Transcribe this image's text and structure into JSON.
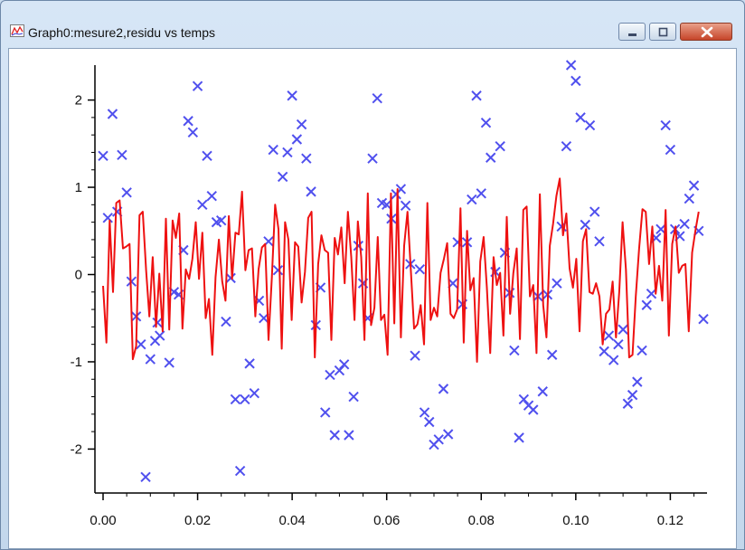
{
  "window": {
    "title": "Graph0:mesure2,residu vs temps",
    "icon": "graph-icon",
    "controls": [
      "minimize-icon",
      "maximize-icon",
      "close-icon"
    ]
  },
  "colors": {
    "marker": "#5050ee",
    "line": "#ee1111",
    "axis": "#000000"
  },
  "chart_data": {
    "type": "scatter",
    "title": "",
    "xlabel": "",
    "ylabel": "",
    "xlim": [
      0.0,
      0.127
    ],
    "ylim": [
      -2.4,
      2.4
    ],
    "xticks": [
      "0.00",
      "0.02",
      "0.04",
      "0.06",
      "0.08",
      "0.10",
      "0.12"
    ],
    "xtick_values": [
      0.0,
      0.02,
      0.04,
      0.06,
      0.08,
      0.1,
      0.12
    ],
    "yticks": [
      "2",
      "1",
      "0",
      "-1",
      "-2"
    ],
    "ytick_values": [
      2,
      1,
      0,
      -1,
      -2
    ],
    "grid": false,
    "legend": "none",
    "series": [
      {
        "role": "scatter",
        "marker": "x",
        "points": [
          [
            0.0,
            1.36
          ],
          [
            0.001,
            0.65
          ],
          [
            0.002,
            1.84
          ],
          [
            0.003,
            0.72
          ],
          [
            0.004,
            1.37
          ],
          [
            0.005,
            0.94
          ],
          [
            0.006,
            -0.08
          ],
          [
            0.007,
            -0.48
          ],
          [
            0.008,
            -0.8
          ],
          [
            0.009,
            -2.32
          ],
          [
            0.01,
            -0.97
          ],
          [
            0.011,
            -0.76
          ],
          [
            0.0115,
            -0.55
          ],
          [
            0.012,
            -0.7
          ],
          [
            0.014,
            -1.01
          ],
          [
            0.015,
            -0.2
          ],
          [
            0.016,
            -0.23
          ],
          [
            0.017,
            0.28
          ],
          [
            0.018,
            1.76
          ],
          [
            0.019,
            1.63
          ],
          [
            0.02,
            2.16
          ],
          [
            0.021,
            0.8
          ],
          [
            0.022,
            1.36
          ],
          [
            0.023,
            0.9
          ],
          [
            0.024,
            0.6
          ],
          [
            0.025,
            0.62
          ],
          [
            0.026,
            -0.54
          ],
          [
            0.027,
            -0.04
          ],
          [
            0.028,
            -1.43
          ],
          [
            0.029,
            -2.25
          ],
          [
            0.03,
            -1.43
          ],
          [
            0.031,
            -1.02
          ],
          [
            0.032,
            -1.36
          ],
          [
            0.033,
            -0.3
          ],
          [
            0.034,
            -0.5
          ],
          [
            0.035,
            0.38
          ],
          [
            0.036,
            1.43
          ],
          [
            0.037,
            0.05
          ],
          [
            0.038,
            1.12
          ],
          [
            0.039,
            1.4
          ],
          [
            0.04,
            2.05
          ],
          [
            0.041,
            1.55
          ],
          [
            0.042,
            1.72
          ],
          [
            0.043,
            1.33
          ],
          [
            0.044,
            0.95
          ],
          [
            0.045,
            -0.58
          ],
          [
            0.046,
            -0.15
          ],
          [
            0.047,
            -1.58
          ],
          [
            0.048,
            -1.15
          ],
          [
            0.049,
            -1.84
          ],
          [
            0.05,
            -1.1
          ],
          [
            0.051,
            -1.03
          ],
          [
            0.052,
            -1.84
          ],
          [
            0.053,
            -1.4
          ],
          [
            0.054,
            0.33
          ],
          [
            0.055,
            -0.1
          ],
          [
            0.056,
            -0.5
          ],
          [
            0.057,
            1.33
          ],
          [
            0.058,
            2.02
          ],
          [
            0.059,
            0.82
          ],
          [
            0.06,
            0.8
          ],
          [
            0.061,
            0.64
          ],
          [
            0.062,
            0.92
          ],
          [
            0.063,
            0.98
          ],
          [
            0.064,
            0.79
          ],
          [
            0.065,
            0.12
          ],
          [
            0.066,
            -0.93
          ],
          [
            0.067,
            0.06
          ],
          [
            0.068,
            -1.58
          ],
          [
            0.069,
            -1.69
          ],
          [
            0.07,
            -1.95
          ],
          [
            0.071,
            -1.89
          ],
          [
            0.072,
            -1.31
          ],
          [
            0.073,
            -1.83
          ],
          [
            0.074,
            -0.1
          ],
          [
            0.075,
            0.37
          ],
          [
            0.076,
            -0.34
          ],
          [
            0.077,
            0.37
          ],
          [
            0.078,
            0.86
          ],
          [
            0.079,
            2.05
          ],
          [
            0.08,
            0.93
          ],
          [
            0.081,
            1.74
          ],
          [
            0.082,
            1.34
          ],
          [
            0.083,
            0.03
          ],
          [
            0.084,
            1.47
          ],
          [
            0.085,
            0.25
          ],
          [
            0.086,
            -0.21
          ],
          [
            0.087,
            -0.87
          ],
          [
            0.088,
            -1.87
          ],
          [
            0.089,
            -1.43
          ],
          [
            0.09,
            -1.5
          ],
          [
            0.091,
            -1.55
          ],
          [
            0.092,
            -0.25
          ],
          [
            0.093,
            -1.34
          ],
          [
            0.094,
            -0.23
          ],
          [
            0.095,
            -0.92
          ],
          [
            0.096,
            -0.1
          ],
          [
            0.097,
            0.55
          ],
          [
            0.098,
            1.47
          ],
          [
            0.099,
            2.4
          ],
          [
            0.1,
            2.22
          ],
          [
            0.101,
            1.8
          ],
          [
            0.102,
            0.57
          ],
          [
            0.103,
            1.71
          ],
          [
            0.104,
            0.72
          ],
          [
            0.105,
            0.38
          ],
          [
            0.106,
            -0.88
          ],
          [
            0.107,
            -0.7
          ],
          [
            0.108,
            -0.98
          ],
          [
            0.109,
            -0.8
          ],
          [
            0.11,
            -0.63
          ],
          [
            0.111,
            -1.48
          ],
          [
            0.112,
            -1.38
          ],
          [
            0.113,
            -1.23
          ],
          [
            0.114,
            -0.87
          ],
          [
            0.115,
            -0.35
          ],
          [
            0.116,
            -0.22
          ],
          [
            0.117,
            0.42
          ],
          [
            0.118,
            0.52
          ],
          [
            0.119,
            1.71
          ],
          [
            0.12,
            1.43
          ],
          [
            0.121,
            0.52
          ],
          [
            0.122,
            0.44
          ],
          [
            0.123,
            0.58
          ],
          [
            0.124,
            0.87
          ],
          [
            0.125,
            1.02
          ],
          [
            0.126,
            0.5
          ],
          [
            0.127,
            -0.51
          ]
        ]
      },
      {
        "role": "line",
        "x_start": 0.0,
        "x_step": 0.0007,
        "values": [
          -0.13,
          -0.78,
          0.62,
          -0.2,
          0.82,
          0.85,
          0.3,
          0.32,
          0.35,
          -0.97,
          -0.82,
          0.68,
          0.72,
          0.05,
          -0.48,
          0.2,
          -0.6,
          0.01,
          -0.65,
          0.64,
          -0.63,
          0.62,
          0.42,
          0.7,
          -0.62,
          0.06,
          -0.05,
          0.18,
          0.6,
          -0.05,
          0.48,
          -0.5,
          -0.28,
          -0.92,
          -0.03,
          0.4,
          -0.08,
          -0.3,
          0.67,
          -0.05,
          0.48,
          0.46,
          0.95,
          0.05,
          0.28,
          0.3,
          -0.48,
          0.06,
          0.31,
          0.35,
          -0.75,
          -0.03,
          0.8,
          0.52,
          -0.85,
          0.6,
          0.4,
          -0.52,
          0.37,
          0.32,
          -0.32,
          0.03,
          0.65,
          0.72,
          -0.95,
          0.12,
          0.45,
          0.28,
          0.25,
          -0.75,
          0.42,
          0.23,
          0.54,
          -0.1,
          0.72,
          0.2,
          -0.52,
          0.61,
          0.2,
          -0.75,
          0.93,
          -0.58,
          -0.38,
          0.43,
          -0.52,
          -0.46,
          -0.92,
          0.93,
          -0.56,
          0.98,
          -0.72,
          0.33,
          0.72,
          0.05,
          -0.62,
          -0.57,
          -0.35,
          -0.8,
          0.82,
          -0.52,
          -0.38,
          -0.48,
          0.02,
          0.18,
          0.36,
          -0.45,
          -0.5,
          -0.4,
          0.76,
          -0.78,
          0.5,
          -0.18,
          -0.04,
          -1.0,
          0.15,
          0.43,
          -0.15,
          -0.9,
          0.2,
          -0.12,
          0.02,
          -0.7,
          0.66,
          -0.45,
          0.02,
          0.3,
          -0.74,
          0.74,
          0.78,
          -0.25,
          -0.12,
          -0.9,
          0.92,
          -0.35,
          -0.72,
          0.33,
          0.58,
          0.9,
          1.1,
          0.45,
          0.7,
          0.07,
          -0.15,
          0.18,
          -0.65,
          0.38,
          0.52,
          -0.2,
          -0.22,
          -0.1,
          -0.25,
          -0.8,
          -0.45,
          -0.4,
          -0.08,
          -0.72,
          -0.2,
          0.6,
          0.06,
          -0.95,
          -0.92,
          -0.25,
          0.3,
          0.75,
          0.72,
          0.12,
          0.55,
          -0.22,
          0.1,
          -0.3,
          0.74,
          -0.7,
          0.35,
          0.55,
          0.02,
          0.1,
          0.12,
          -0.65,
          0.25,
          0.5,
          0.72
        ]
      }
    ]
  }
}
